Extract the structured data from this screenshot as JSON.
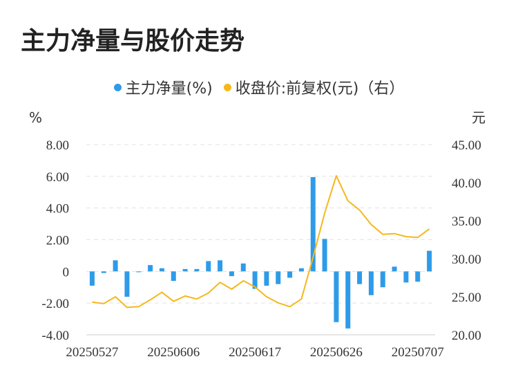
{
  "title": "主力净量与股价走势",
  "legend": [
    {
      "label": "主力净量(%)",
      "color": "#2f9be8"
    },
    {
      "label": "收盘价:前复权(元)（右）",
      "color": "#f5b81a"
    }
  ],
  "chart_data": {
    "type": "bar",
    "left_unit": "%",
    "right_unit": "元",
    "x_tick_labels": [
      "20250527",
      "20250606",
      "20250617",
      "20250626",
      "20250707"
    ],
    "x_tick_indices": [
      0,
      7,
      14,
      21,
      28
    ],
    "y_left": {
      "ticks": [
        "8.00",
        "6.00",
        "4.00",
        "2.00",
        "0",
        "-2.00",
        "-4.00"
      ],
      "range": [
        -4,
        8
      ]
    },
    "y_right": {
      "ticks": [
        "45.00",
        "40.00",
        "35.00",
        "30.00",
        "25.00",
        "20.00"
      ],
      "range": [
        20,
        45
      ]
    },
    "grid": true,
    "legend_position": "top",
    "series": [
      {
        "name": "主力净量(%)",
        "type": "bar",
        "color": "#2f9be8",
        "axis": "left",
        "values": [
          -0.9,
          -0.1,
          0.7,
          -1.6,
          -0.05,
          0.4,
          0.2,
          -0.6,
          0.15,
          0.15,
          0.65,
          0.7,
          -0.3,
          0.5,
          -1.1,
          -0.9,
          -0.8,
          -0.4,
          0.2,
          5.95,
          2.05,
          -3.2,
          -3.6,
          -0.8,
          -1.5,
          -1.0,
          0.3,
          -0.7,
          -0.65,
          1.3
        ]
      },
      {
        "name": "收盘价:前复权(元)（右）",
        "type": "line",
        "color": "#f5b81a",
        "axis": "right",
        "values": [
          24.3,
          24.1,
          25.0,
          23.6,
          23.7,
          24.6,
          25.6,
          24.4,
          25.1,
          24.7,
          25.5,
          26.9,
          26.0,
          27.1,
          26.3,
          25.0,
          24.2,
          23.7,
          24.7,
          30.2,
          36.0,
          40.9,
          37.6,
          36.4,
          34.5,
          33.2,
          33.3,
          32.9,
          32.8,
          33.9
        ]
      }
    ]
  }
}
